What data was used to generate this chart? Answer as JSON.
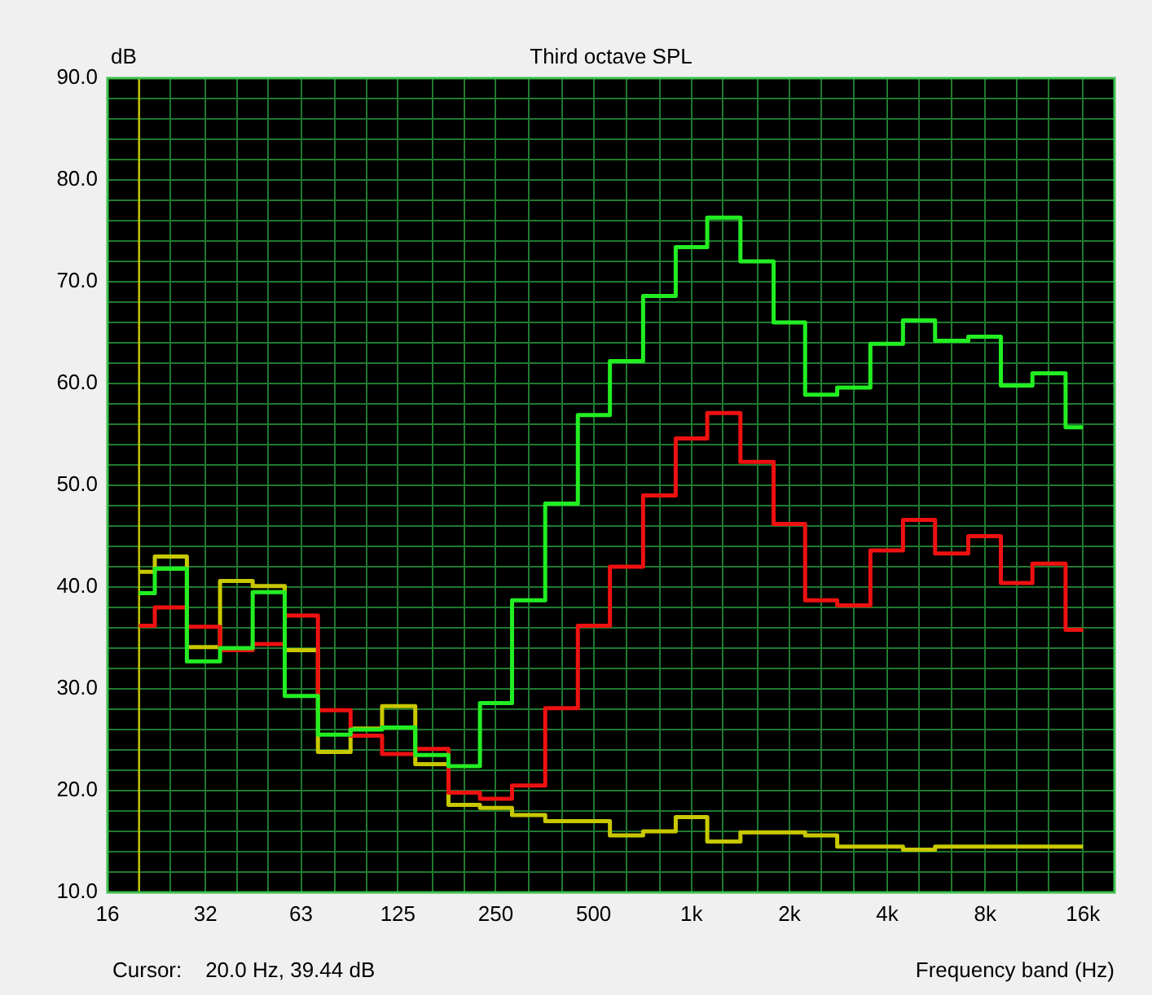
{
  "chart_data": {
    "type": "step",
    "title": "Third octave SPL",
    "xlabel": "Frequency band (Hz)",
    "ylabel": "dB",
    "annotations": [
      "Cursor:    20.0 Hz, 39.44 dB"
    ],
    "x": [
      20,
      25,
      31.5,
      40,
      50,
      63,
      80,
      100,
      125,
      160,
      200,
      250,
      315,
      400,
      500,
      630,
      800,
      1000,
      1250,
      1600,
      2000,
      2500,
      3150,
      4000,
      5000,
      6300,
      8000,
      10000,
      12500,
      16000
    ],
    "series": [
      {
        "color": "#22ee22",
        "values": [
          39.4,
          41.8,
          32.7,
          34.0,
          39.5,
          29.3,
          25.5,
          26.0,
          26.2,
          23.5,
          22.4,
          28.6,
          38.7,
          48.2,
          56.9,
          62.2,
          68.6,
          73.4,
          76.3,
          72.0,
          66.0,
          58.9,
          59.6,
          63.9,
          66.2,
          64.2,
          64.6,
          59.8,
          61.0,
          55.7
        ]
      },
      {
        "color": "#ee1111",
        "values": [
          36.2,
          38.0,
          36.1,
          33.8,
          34.4,
          37.2,
          27.9,
          25.4,
          23.6,
          24.1,
          19.8,
          19.2,
          20.5,
          28.1,
          36.2,
          42.0,
          49.0,
          54.6,
          57.1,
          52.3,
          46.2,
          38.7,
          38.2,
          43.6,
          46.6,
          43.3,
          45.0,
          40.4,
          42.3,
          35.8
        ]
      },
      {
        "color": "#c8c800",
        "values": [
          41.5,
          43.0,
          34.1,
          40.6,
          40.1,
          33.8,
          23.8,
          26.1,
          28.3,
          22.6,
          18.6,
          18.3,
          17.6,
          17.0,
          17.0,
          15.6,
          16.0,
          17.4,
          15.0,
          15.9,
          15.9,
          15.6,
          14.5,
          14.5,
          14.2,
          14.5,
          14.5,
          14.5,
          14.5,
          14.5
        ]
      }
    ],
    "log": "x",
    "xlim": [
      16,
      20000
    ],
    "xticks": [
      16,
      {
        "value": 20,
        "label": null
      },
      {
        "value": 25,
        "label": null
      },
      32,
      {
        "value": 40,
        "label": null
      },
      {
        "value": 50,
        "label": null
      },
      63,
      {
        "value": 80,
        "label": null
      },
      {
        "value": 100,
        "label": null
      },
      125,
      {
        "value": 160,
        "label": null
      },
      {
        "value": 200,
        "label": null
      },
      250,
      {
        "value": 315,
        "label": null
      },
      {
        "value": 400,
        "label": null
      },
      500,
      {
        "value": 630,
        "label": null
      },
      {
        "value": 800,
        "label": null
      },
      {
        "value": 1000,
        "label": "1k"
      },
      {
        "value": 1250,
        "label": null
      },
      {
        "value": 1600,
        "label": null
      },
      {
        "value": 2000,
        "label": "2k"
      },
      {
        "value": 2500,
        "label": null
      },
      {
        "value": 3150,
        "label": null
      },
      {
        "value": 4000,
        "label": "4k"
      },
      {
        "value": 5000,
        "label": null
      },
      {
        "value": 6300,
        "label": null
      },
      {
        "value": 8000,
        "label": "8k"
      },
      {
        "value": 10000,
        "label": null
      },
      {
        "value": 12500,
        "label": null
      },
      {
        "value": 16000,
        "label": "16k"
      }
    ],
    "ylim": [
      10,
      90
    ],
    "yticks": [
      {
        "value": 10,
        "label": "10.0"
      },
      {
        "value": 12,
        "label": null
      },
      {
        "value": 14,
        "label": null
      },
      {
        "value": 16,
        "label": null
      },
      {
        "value": 18,
        "label": null
      },
      {
        "value": 20,
        "label": "20.0"
      },
      {
        "value": 22,
        "label": null
      },
      {
        "value": 24,
        "label": null
      },
      {
        "value": 26,
        "label": null
      },
      {
        "value": 28,
        "label": null
      },
      {
        "value": 30,
        "label": "30.0"
      },
      {
        "value": 32,
        "label": null
      },
      {
        "value": 34,
        "label": null
      },
      {
        "value": 36,
        "label": null
      },
      {
        "value": 38,
        "label": null
      },
      {
        "value": 40,
        "label": "40.0"
      },
      {
        "value": 42,
        "label": null
      },
      {
        "value": 44,
        "label": null
      },
      {
        "value": 46,
        "label": null
      },
      {
        "value": 48,
        "label": null
      },
      {
        "value": 50,
        "label": "50.0"
      },
      {
        "value": 52,
        "label": null
      },
      {
        "value": 54,
        "label": null
      },
      {
        "value": 56,
        "label": null
      },
      {
        "value": 58,
        "label": null
      },
      {
        "value": 60,
        "label": "60.0"
      },
      {
        "value": 62,
        "label": null
      },
      {
        "value": 64,
        "label": null
      },
      {
        "value": 66,
        "label": null
      },
      {
        "value": 68,
        "label": null
      },
      {
        "value": 70,
        "label": "70.0"
      },
      {
        "value": 72,
        "label": null
      },
      {
        "value": 74,
        "label": null
      },
      {
        "value": 76,
        "label": null
      },
      {
        "value": 78,
        "label": null
      },
      {
        "value": 80,
        "label": "80.0"
      },
      {
        "value": 82,
        "label": null
      },
      {
        "value": 84,
        "label": null
      },
      {
        "value": 86,
        "label": null
      },
      {
        "value": 88,
        "label": null
      },
      {
        "value": 90,
        "label": "90.0"
      }
    ],
    "grid": true,
    "ref_lines": [
      {
        "axis": "x",
        "value": 20,
        "color": "#c8c800"
      }
    ]
  }
}
